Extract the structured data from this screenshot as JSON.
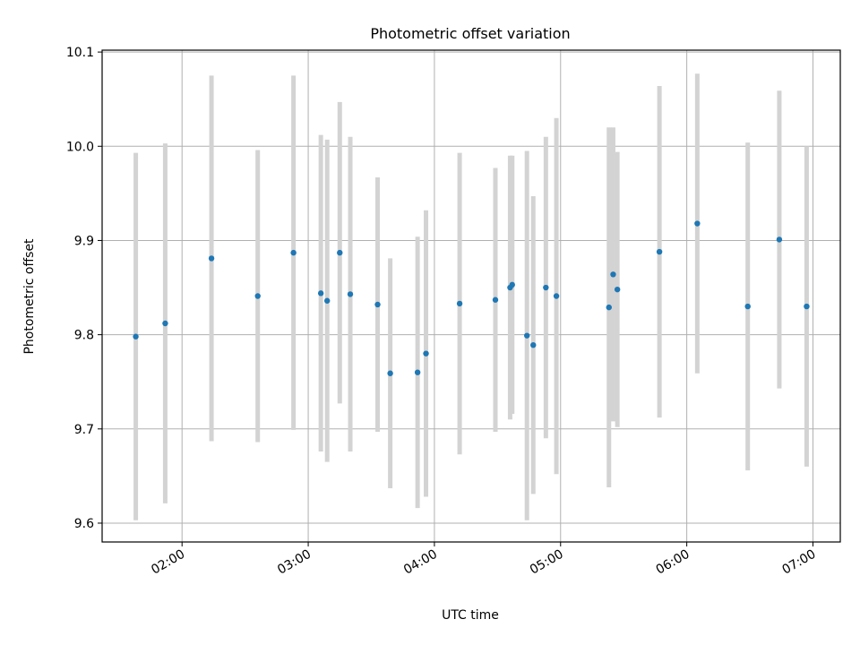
{
  "chart_data": {
    "type": "scatter",
    "title": "Photometric offset variation",
    "xlabel": "UTC time",
    "ylabel": "Photometric offset",
    "ylim": [
      9.58,
      10.102
    ],
    "xlim": [
      "01:22",
      "07:13"
    ],
    "grid": true,
    "x_ticks": [
      "02:00",
      "03:00",
      "04:00",
      "05:00",
      "06:00",
      "07:00"
    ],
    "y_ticks": [
      "9.6",
      "9.7",
      "9.8",
      "9.9",
      "10.0",
      "10.1"
    ],
    "y_tick_values": [
      9.6,
      9.7,
      9.8,
      9.9,
      10.0,
      10.1
    ],
    "point_color": "#1f77b4",
    "errorbar_color": "#d3d3d3",
    "series": [
      {
        "points": [
          {
            "x": "01:38",
            "y": 9.798,
            "err": 0.195
          },
          {
            "x": "01:52",
            "y": 9.812,
            "err": 0.191
          },
          {
            "x": "02:14",
            "y": 9.881,
            "err": 0.194
          },
          {
            "x": "02:36",
            "y": 9.841,
            "err": 0.155
          },
          {
            "x": "02:53",
            "y": 9.887,
            "err": 0.188
          },
          {
            "x": "03:06",
            "y": 9.844,
            "err": 0.168
          },
          {
            "x": "03:09",
            "y": 9.836,
            "err": 0.171
          },
          {
            "x": "03:15",
            "y": 9.887,
            "err": 0.16
          },
          {
            "x": "03:20",
            "y": 9.843,
            "err": 0.167
          },
          {
            "x": "03:33",
            "y": 9.832,
            "err": 0.135
          },
          {
            "x": "03:39",
            "y": 9.759,
            "err": 0.122
          },
          {
            "x": "03:52",
            "y": 9.76,
            "err": 0.144
          },
          {
            "x": "03:56",
            "y": 9.78,
            "err": 0.152
          },
          {
            "x": "04:12",
            "y": 9.833,
            "err": 0.16
          },
          {
            "x": "04:29",
            "y": 9.837,
            "err": 0.14
          },
          {
            "x": "04:36",
            "y": 9.85,
            "err": 0.14
          },
          {
            "x": "04:37",
            "y": 9.853,
            "err": 0.137
          },
          {
            "x": "04:44",
            "y": 9.799,
            "err": 0.196
          },
          {
            "x": "04:47",
            "y": 9.789,
            "err": 0.158
          },
          {
            "x": "04:53",
            "y": 9.85,
            "err": 0.16
          },
          {
            "x": "04:58",
            "y": 9.841,
            "err": 0.189
          },
          {
            "x": "05:23",
            "y": 9.829,
            "err": 0.191
          },
          {
            "x": "05:25",
            "y": 9.864,
            "err": 0.156
          },
          {
            "x": "05:27",
            "y": 9.848,
            "err": 0.146
          },
          {
            "x": "05:47",
            "y": 9.888,
            "err": 0.176
          },
          {
            "x": "06:05",
            "y": 9.918,
            "err": 0.159
          },
          {
            "x": "06:29",
            "y": 9.83,
            "err": 0.174
          },
          {
            "x": "06:44",
            "y": 9.901,
            "err": 0.158
          },
          {
            "x": "06:57",
            "y": 9.83,
            "err": 0.17
          }
        ]
      }
    ]
  }
}
